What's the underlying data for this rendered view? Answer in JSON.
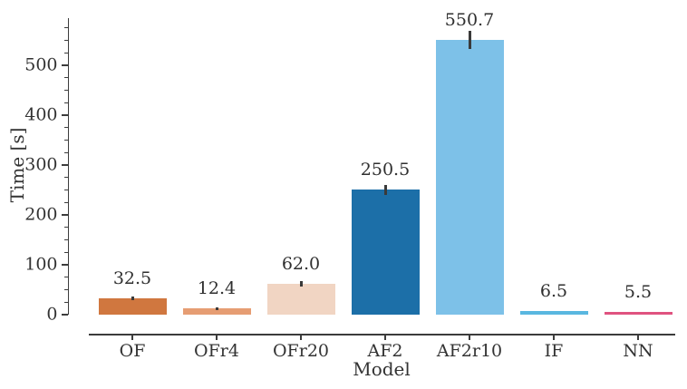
{
  "figure": {
    "background": "#ffffff",
    "text_color": "#333333",
    "axis_color": "#3c3c3c",
    "error_bar_color": "#3a3a3a"
  },
  "chart_data": {
    "type": "bar",
    "title": "",
    "xlabel": "Model",
    "ylabel": "Time [s]",
    "categories": [
      "OF",
      "OFr4",
      "OFr20",
      "AF2",
      "AF2r10",
      "IF",
      "NN"
    ],
    "values": [
      32.5,
      12.4,
      62.0,
      250.5,
      550.7,
      6.5,
      5.5
    ],
    "value_labels": [
      "32.5",
      "12.4",
      "62.0",
      "250.5",
      "550.7",
      "6.5",
      "5.5"
    ],
    "error_bars": [
      4,
      3,
      5,
      10,
      18,
      0,
      0
    ],
    "bar_colors": [
      "#d0773f",
      "#e69d73",
      "#f1d5c3",
      "#1c6fa8",
      "#7dc1e8",
      "#59b7e0",
      "#df5380"
    ],
    "ylim": [
      0,
      595
    ],
    "yticks": [
      0,
      100,
      200,
      300,
      400,
      500
    ],
    "ytick_labels": [
      "0",
      "100",
      "200",
      "300",
      "400",
      "500"
    ],
    "minor_tick_step": 25,
    "grid": false,
    "legend": null,
    "orientation": "vertical"
  }
}
